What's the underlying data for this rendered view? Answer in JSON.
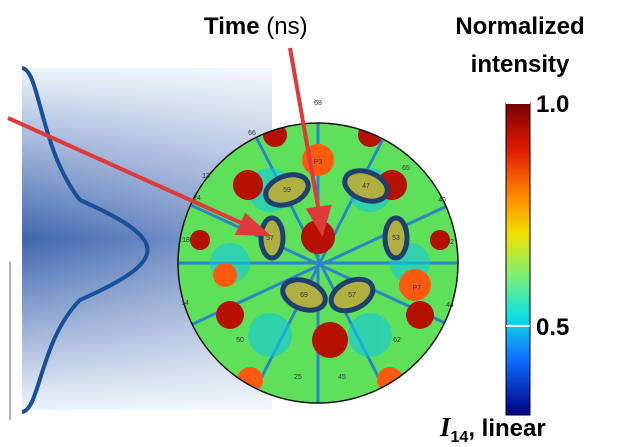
{
  "annotation": {
    "label": "Time",
    "unit": "(ns)"
  },
  "colorbar": {
    "title_lines": [
      "Normalized",
      "intensity"
    ],
    "range": [
      0.3,
      1.0
    ],
    "ticks": [
      {
        "value": 1.0,
        "label": "1.0"
      },
      {
        "value": 0.5,
        "label": "0.5"
      }
    ],
    "axis_label": {
      "symbol": "I",
      "subscript": "14",
      "suffix": ", linear"
    }
  },
  "ports": [
    "68",
    "66",
    "13",
    "P3",
    "65",
    "59",
    "47",
    "24",
    "40",
    "18",
    "57",
    "53",
    "42",
    "14",
    "69",
    "57",
    "P7",
    "44",
    "50",
    "62",
    "25",
    "45"
  ]
}
